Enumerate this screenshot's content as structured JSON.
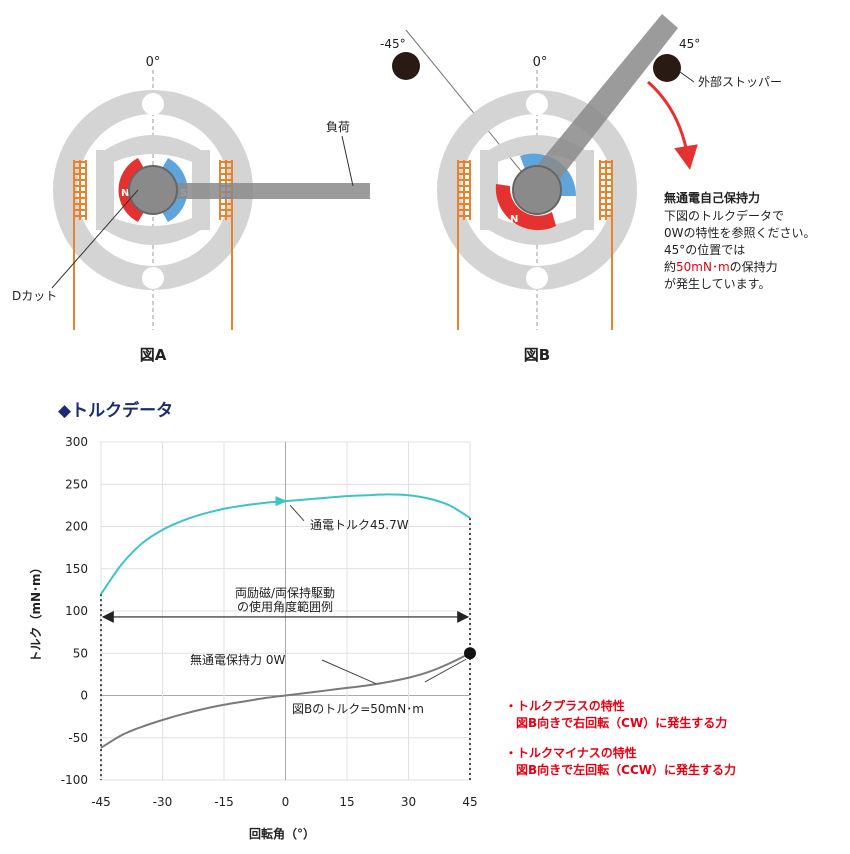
{
  "figure_a": {
    "zero_angle": "0°",
    "load_label": "負荷",
    "dcut_label": "Dカット",
    "pole_n": "N",
    "pole_s": "S",
    "caption": "図A"
  },
  "figure_b": {
    "minus45_label": "-45°",
    "zero_angle": "0°",
    "plus45_label": "45°",
    "stopper_label": "外部ストッパー",
    "pole_n": "N",
    "caption": "図B",
    "note_title": "無通電自己保持力",
    "note_line1": "下図のトルクデータで",
    "note_line2": "0Wの特性を参照ください。",
    "note_line3": "45°の位置では",
    "note_line4_pre": "約",
    "note_line4_value": "50mN･m",
    "note_line4_post": "の保持力",
    "note_line5": "が発生しています。"
  },
  "section_title": "◆トルクデータ",
  "colors": {
    "rotor_red": "#e5312f",
    "rotor_blue": "#5fa5dc",
    "coil_orange": "#e8832b",
    "stator_gray": "#d4d4d4",
    "curve_teal": "#3cc4c8",
    "curve_gray": "#7a7a7a",
    "title_navy": "#1b2d6b",
    "accent_red": "#e60012"
  },
  "chart_data": {
    "type": "line",
    "xlabel": "回転角（°）",
    "ylabel": "トルク（mN･m）",
    "xlim": [
      -45,
      45
    ],
    "ylim": [
      -100,
      300
    ],
    "x_ticks": [
      "-45",
      "-30",
      "-15",
      "0",
      "15",
      "30",
      "45"
    ],
    "y_ticks": [
      "300",
      "250",
      "200",
      "150",
      "100",
      "50",
      "0",
      "-50",
      "-100"
    ],
    "grid": true,
    "series": [
      {
        "name": "通電トルク45.7W",
        "color": "#3cc4c8",
        "x": [
          -45,
          -40,
          -35,
          -30,
          -25,
          -20,
          -15,
          -10,
          -5,
          0,
          5,
          10,
          15,
          20,
          25,
          30,
          35,
          40,
          45
        ],
        "y": [
          120,
          155,
          180,
          196,
          207,
          215,
          221,
          225,
          228,
          230,
          232,
          234,
          236,
          237,
          238,
          237,
          233,
          225,
          210
        ]
      },
      {
        "name": "無通電保持力 0W",
        "color": "#7a7a7a",
        "x": [
          -45,
          -40,
          -35,
          -30,
          -25,
          -20,
          -15,
          -10,
          -5,
          0,
          5,
          10,
          15,
          20,
          25,
          30,
          35,
          40,
          45
        ],
        "y": [
          -62,
          -47,
          -37,
          -29,
          -22,
          -16,
          -11,
          -7,
          -3,
          0,
          3,
          6,
          9,
          12,
          16,
          21,
          28,
          38,
          50
        ]
      }
    ],
    "annotations": {
      "range_label_line1": "両励磁/両保持駆動",
      "range_label_line2": "の使用角度範囲例",
      "range_y": 93,
      "point_label": "図Bのトルク=50mN･m",
      "point_x": 45,
      "point_y": 50
    }
  },
  "legend_notes": {
    "plus_title": "・トルクプラスの特性",
    "plus_desc": "図B向きで右回転（CW）に発生する力",
    "minus_title": "・トルクマイナスの特性",
    "minus_desc": "図B向きで左回転（CCW）に発生する力"
  }
}
